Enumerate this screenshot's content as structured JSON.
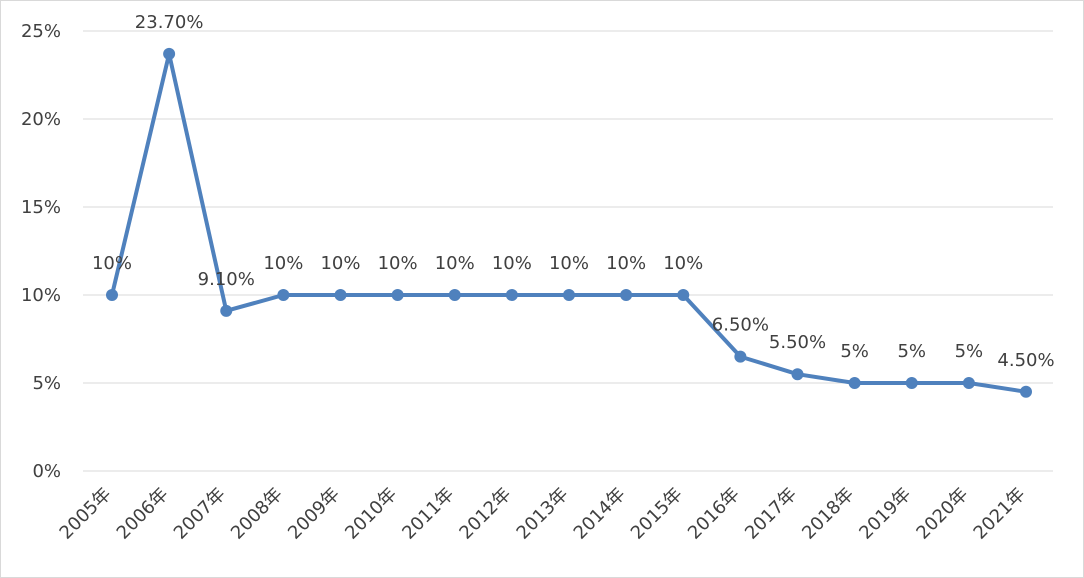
{
  "chart_data": {
    "type": "line",
    "title": "",
    "xlabel": "",
    "ylabel": "",
    "categories": [
      "2005年",
      "2006年",
      "2007年",
      "2008年",
      "2009年",
      "2010年",
      "2011年",
      "2012年",
      "2013年",
      "2014年",
      "2015年",
      "2016年",
      "2017年",
      "2018年",
      "2019年",
      "2020年",
      "2021年"
    ],
    "series": [
      {
        "name": "Rate",
        "values": [
          10,
          23.7,
          9.1,
          10,
          10,
          10,
          10,
          10,
          10,
          10,
          10,
          6.5,
          5.5,
          5,
          5,
          5,
          4.5
        ],
        "labels": [
          "10%",
          "23.70%",
          "9.10%",
          "10%",
          "10%",
          "10%",
          "10%",
          "10%",
          "10%",
          "10%",
          "10%",
          "6.50%",
          "5.50%",
          "5%",
          "5%",
          "5%",
          "4.50%"
        ],
        "color": "#4f81bd"
      }
    ],
    "ylim": [
      0,
      25
    ],
    "yticks": [
      0,
      5,
      10,
      15,
      20,
      25
    ],
    "ytick_labels": [
      "0%",
      "5%",
      "10%",
      "15%",
      "20%",
      "25%"
    ],
    "grid": true,
    "legend": "none",
    "colors": {
      "grid": "#d9d9d9",
      "text": "#404040",
      "line": "#4f81bd"
    }
  }
}
